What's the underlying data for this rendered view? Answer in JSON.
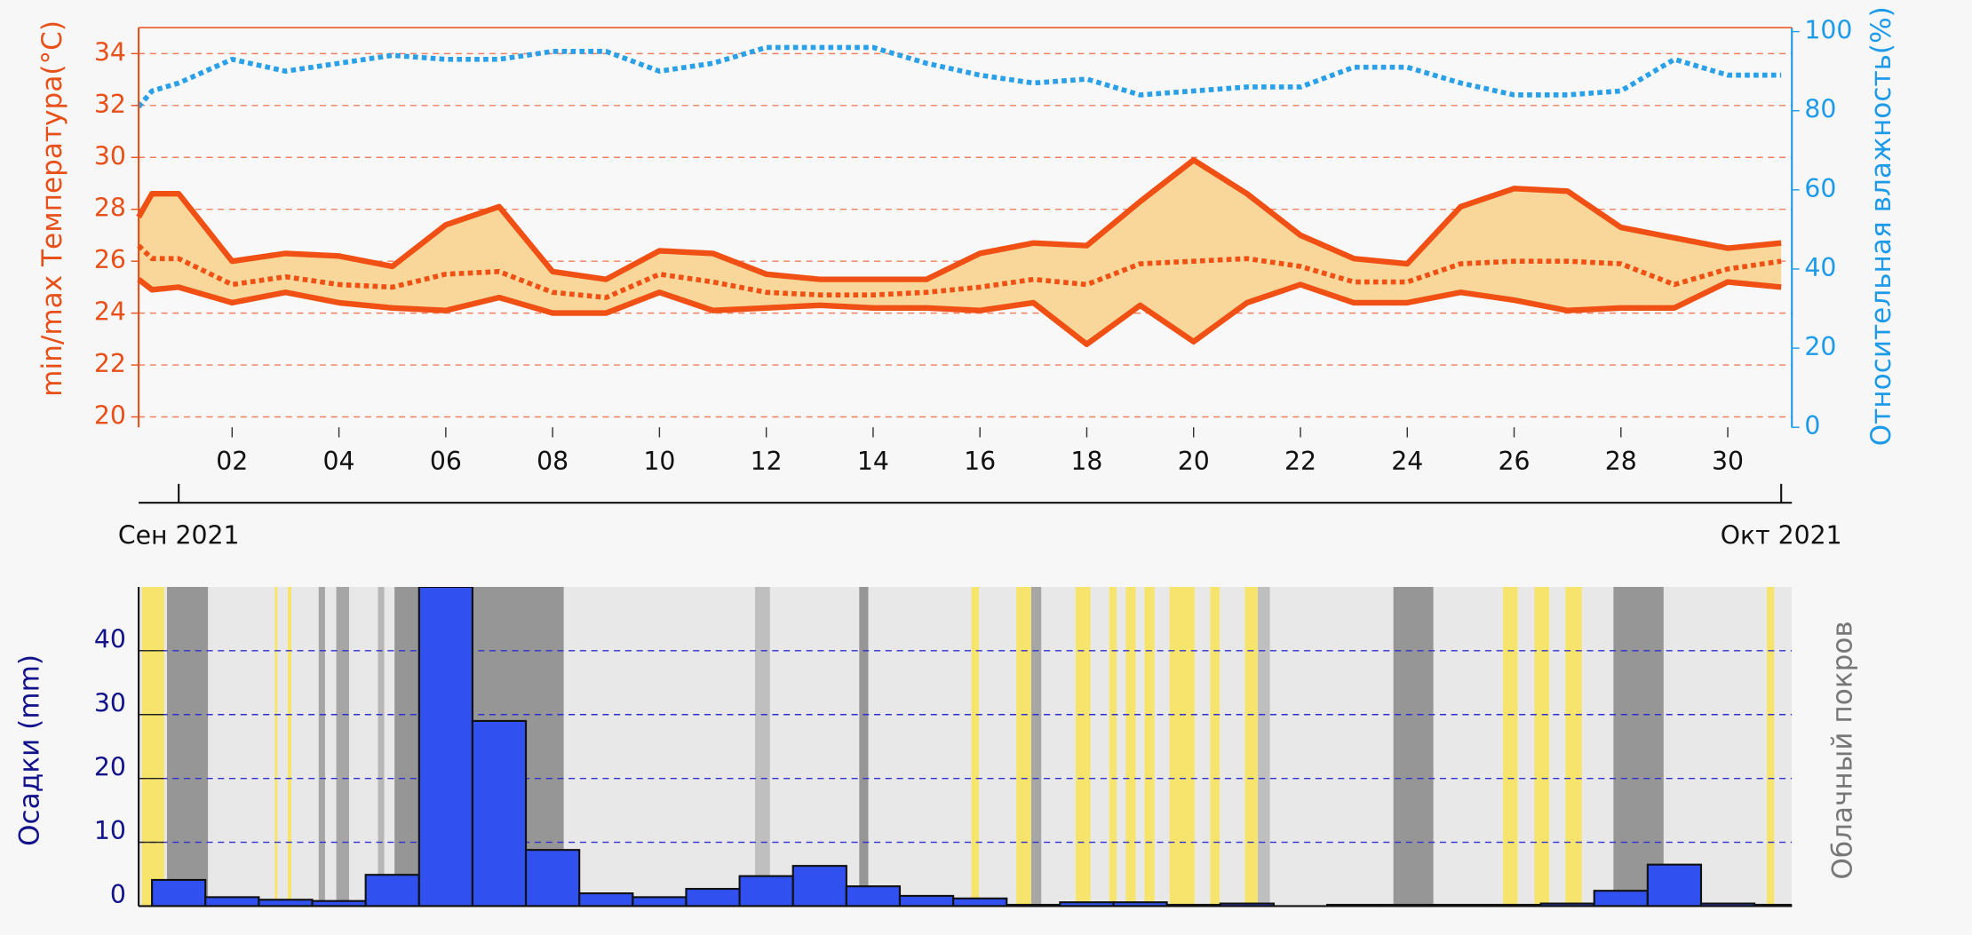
{
  "chart_data": [
    {
      "type": "line",
      "ylabel": "min/max Температура(°C)",
      "y2label": "Относительная влажность(%)",
      "x": [
        0.25,
        0.5,
        1,
        2,
        3,
        4,
        5,
        6,
        7,
        8,
        9,
        10,
        11,
        12,
        13,
        14,
        15,
        16,
        17,
        18,
        19,
        20,
        21,
        22,
        23,
        24,
        25,
        26,
        27,
        28,
        29,
        30,
        31
      ],
      "xlim": [
        0.25,
        31.2
      ],
      "xticks": [
        {
          "value": 2,
          "label": "02"
        },
        {
          "value": 4,
          "label": "04"
        },
        {
          "value": 6,
          "label": "06"
        },
        {
          "value": 8,
          "label": "08"
        },
        {
          "value": 10,
          "label": "10"
        },
        {
          "value": 12,
          "label": "12"
        },
        {
          "value": 14,
          "label": "14"
        },
        {
          "value": 16,
          "label": "16"
        },
        {
          "value": 18,
          "label": "18"
        },
        {
          "value": 20,
          "label": "20"
        },
        {
          "value": 22,
          "label": "22"
        },
        {
          "value": 24,
          "label": "24"
        },
        {
          "value": 26,
          "label": "26"
        },
        {
          "value": 28,
          "label": "28"
        },
        {
          "value": 30,
          "label": "30"
        }
      ],
      "annotations": [
        {
          "x": 1,
          "text": "Сен 2021"
        },
        {
          "x": 31,
          "text": "Окт 2021"
        }
      ],
      "ylim": [
        19.6,
        35
      ],
      "yticks": [
        20,
        22,
        24,
        26,
        28,
        30,
        32,
        34
      ],
      "y2lim": [
        0,
        101
      ],
      "y2ticks": [
        0,
        20,
        40,
        60,
        80,
        100
      ],
      "grid": true,
      "band_color": "#f9d79a",
      "series": [
        {
          "color": "#f05014",
          "style": "solid",
          "values": [
            27.7,
            28.6,
            28.6,
            26.0,
            26.3,
            26.2,
            25.8,
            27.4,
            28.1,
            25.6,
            25.3,
            26.4,
            26.3,
            25.5,
            25.3,
            25.3,
            25.3,
            26.3,
            26.7,
            26.6,
            28.3,
            29.9,
            28.6,
            27.0,
            26.1,
            25.9,
            28.1,
            28.8,
            28.7,
            27.3,
            26.9,
            26.5,
            26.7
          ]
        },
        {
          "color": "#f05014",
          "style": "dotted",
          "values": [
            26.6,
            26.1,
            26.1,
            25.1,
            25.4,
            25.1,
            25.0,
            25.5,
            25.6,
            24.8,
            24.6,
            25.5,
            25.2,
            24.8,
            24.7,
            24.7,
            24.8,
            25.0,
            25.3,
            25.1,
            25.9,
            26.0,
            26.1,
            25.8,
            25.2,
            25.2,
            25.9,
            26.0,
            26.0,
            25.9,
            25.1,
            25.7,
            26.0
          ]
        },
        {
          "color": "#f05014",
          "style": "solid",
          "values": [
            25.3,
            24.9,
            25.0,
            24.4,
            24.8,
            24.4,
            24.2,
            24.1,
            24.6,
            24.0,
            24.0,
            24.8,
            24.1,
            24.2,
            24.3,
            24.2,
            24.2,
            24.1,
            24.4,
            22.8,
            24.3,
            22.9,
            24.4,
            25.1,
            24.4,
            24.4,
            24.8,
            24.5,
            24.1,
            24.2,
            24.2,
            25.2,
            25.0
          ]
        },
        {
          "color": "#2aa0e8",
          "style": "dotted",
          "axis": "y2",
          "values": [
            81,
            85,
            87,
            93,
            90,
            92,
            94,
            93,
            93,
            95,
            95,
            90,
            92,
            96,
            96,
            96,
            92,
            89,
            87,
            88,
            84,
            85,
            86,
            86,
            91,
            91,
            87,
            84,
            84,
            85,
            93,
            89,
            89
          ]
        }
      ]
    },
    {
      "type": "histogram",
      "ylabel": "Осадки (mm)",
      "y2label": "Облачный покров",
      "bins": [
        0.5,
        1.5,
        2.5,
        3.5,
        4.5,
        5.5,
        6.5,
        7.5,
        8.5,
        9.5,
        10.5,
        11.5,
        12.5,
        13.5,
        14.5,
        15.5,
        16.5,
        17.5,
        18.5,
        19.5,
        20.5,
        21.5,
        22.5,
        23.5,
        24.5,
        25.5,
        26.5,
        27.5,
        28.5,
        29.5,
        30.5,
        31.5
      ],
      "values": [
        4.1,
        1.4,
        1.0,
        0.8,
        4.9,
        50,
        29.0,
        8.8,
        2.0,
        1.4,
        2.7,
        4.7,
        6.3,
        3.1,
        1.6,
        1.2,
        0.2,
        0.6,
        0.6,
        0.2,
        0.4,
        0,
        0.2,
        0.2,
        0.2,
        0.2,
        0.4,
        2.4,
        6.5,
        0.4,
        0.2
      ],
      "color": "#3050f0",
      "xlim": [
        0.25,
        31.2
      ],
      "ylim": [
        0,
        50
      ],
      "yticks": [
        0,
        10,
        20,
        30,
        40
      ],
      "grid": true,
      "cloud_cover": {
        "bins": [
          0.26,
          0.31,
          0.73,
          0.78,
          1.55,
          2.8,
          2.85,
          3.04,
          3.11,
          3.62,
          3.74,
          3.95,
          4.19,
          4.73,
          4.85,
          5.04,
          8.21,
          11.79,
          12.07,
          13.74,
          13.91,
          15.84,
          15.98,
          16.68,
          16.96,
          17.15,
          17.79,
          18.07,
          18.42,
          18.56,
          18.73,
          18.92,
          19.08,
          19.27,
          19.55,
          20.02,
          20.31,
          20.49,
          20.96,
          21.2,
          21.43,
          23.74,
          24.49,
          25.79,
          26.07,
          26.38,
          26.66,
          26.96,
          27.27,
          27.86,
          28.8,
          30.73,
          30.87,
          31.2
        ],
        "values": [
          50,
          0,
          50,
          100,
          50,
          0,
          50,
          0,
          50,
          90,
          50,
          90,
          50,
          80,
          50,
          100,
          50,
          75,
          50,
          100,
          50,
          0,
          50,
          0,
          90,
          50,
          0,
          50,
          0,
          50,
          0,
          50,
          0,
          50,
          0,
          50,
          0,
          50,
          0,
          75,
          50,
          100,
          50,
          0,
          50,
          0,
          50,
          0,
          50,
          100,
          50,
          0,
          50
        ]
      }
    }
  ]
}
